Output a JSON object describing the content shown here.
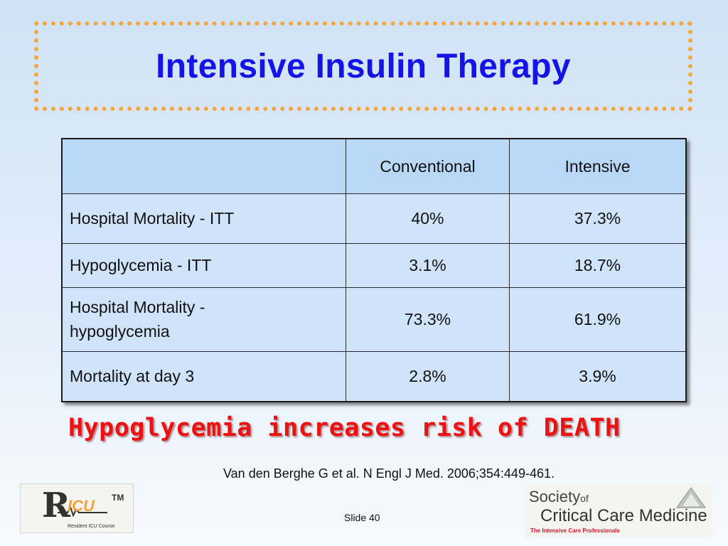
{
  "slide": {
    "title": "Intensive Insulin Therapy",
    "tagline": "Hypoglycemia increases risk of DEATH",
    "citation": "Van den Berghe G et al. N Engl J Med. 2006;354:449-461.",
    "slide_number": "Slide 40"
  },
  "table": {
    "columns": [
      "",
      "Conventional",
      "Intensive"
    ],
    "rows": [
      {
        "label": "Hospital Mortality - ITT",
        "conventional": "40%",
        "intensive": "37.3%"
      },
      {
        "label": "Hypoglycemia - ITT",
        "conventional": "3.1%",
        "intensive": "18.7%"
      },
      {
        "label": "Hospital Mortality -\nhypoglycemia",
        "conventional": "73.3%",
        "intensive": "61.9%"
      },
      {
        "label": "Mortality at day 3",
        "conventional": "2.8%",
        "intensive": "3.9%"
      }
    ]
  },
  "logos": {
    "ricu": {
      "r": "R",
      "icu": "ICU",
      "tm": "TM",
      "subtitle": "Resident ICU Course"
    },
    "sccm": {
      "line1": "Society",
      "line1_of": "of",
      "line2": "Critical Care Medicine",
      "line3": "The Intensive Care Professionals"
    }
  },
  "colors": {
    "title": "#1414e6",
    "frame_border": "#f4a640",
    "tagline": "#ee1111",
    "table_cell": "#cfe4f8"
  }
}
